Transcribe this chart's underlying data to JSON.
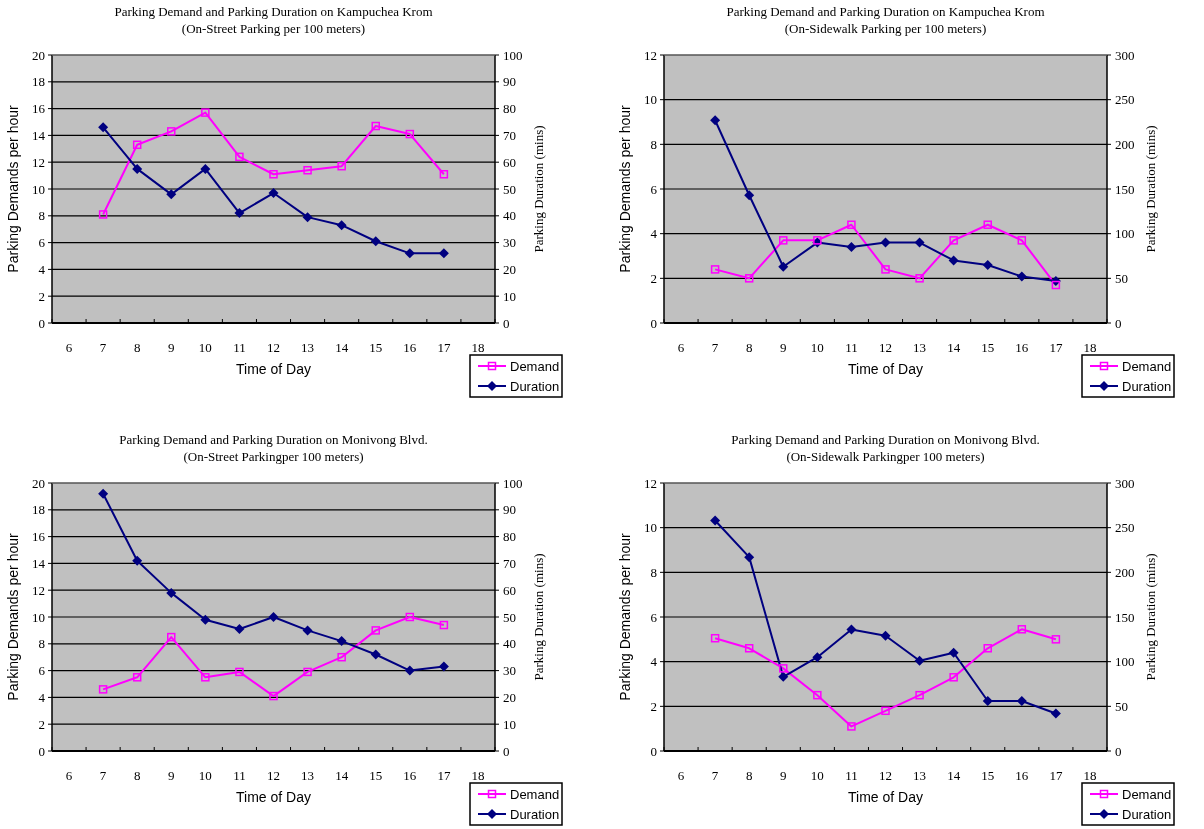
{
  "chart_data": [
    {
      "type": "line",
      "title": "Parking Demand and Parking Duration on Kampuchea Krom",
      "subtitle": "(On-Street Parking per 100 meters)",
      "xlabel": "Time of Day",
      "ylabel": "Parking Demands per hour",
      "y2label": "Parking Duration (mins)",
      "categories": [
        "6",
        "7",
        "8",
        "9",
        "10",
        "11",
        "12",
        "13",
        "14",
        "15",
        "16",
        "17",
        "18"
      ],
      "series": [
        {
          "name": "Demand",
          "color": "#ff00ff",
          "marker": "square",
          "values": [
            null,
            8.1,
            13.3,
            14.3,
            15.7,
            12.4,
            11.1,
            11.4,
            11.7,
            14.7,
            14.1,
            11.1,
            null
          ]
        },
        {
          "name": "Duration",
          "color": "#000080",
          "marker": "diamond",
          "axis": "y2",
          "values": [
            null,
            73,
            57.5,
            48,
            57.5,
            41,
            48.5,
            39.5,
            36.5,
            30.5,
            26,
            26,
            null
          ]
        }
      ],
      "ylim": [
        0,
        20
      ],
      "yticks": [
        0,
        2,
        4,
        6,
        8,
        10,
        12,
        14,
        16,
        18,
        20
      ],
      "y2lim": [
        0,
        100
      ],
      "y2ticks": [
        0,
        10,
        20,
        30,
        40,
        50,
        60,
        70,
        80,
        90,
        100
      ],
      "grid": "y",
      "legend": "bottom right"
    },
    {
      "type": "line",
      "title": "Parking Demand and Parking Duration on Kampuchea Krom",
      "subtitle": "(On-Sidewalk Parking per 100 meters)",
      "xlabel": "Time of Day",
      "ylabel": "Parking Demands per hour",
      "y2label": "Parking Duration (mins)",
      "categories": [
        "6",
        "7",
        "8",
        "9",
        "10",
        "11",
        "12",
        "13",
        "14",
        "15",
        "16",
        "17",
        "18"
      ],
      "series": [
        {
          "name": "Demand",
          "color": "#ff00ff",
          "marker": "square",
          "values": [
            null,
            2.4,
            2.0,
            3.7,
            3.7,
            4.4,
            2.4,
            2.0,
            3.7,
            4.4,
            3.7,
            1.7,
            null
          ]
        },
        {
          "name": "Duration",
          "color": "#000080",
          "marker": "diamond",
          "axis": "y2",
          "values": [
            null,
            227,
            143,
            63,
            90,
            85,
            90,
            90,
            70,
            65,
            52,
            47,
            null
          ]
        }
      ],
      "ylim": [
        0,
        12
      ],
      "yticks": [
        0,
        2,
        4,
        6,
        8,
        10,
        12
      ],
      "y2lim": [
        0,
        300
      ],
      "y2ticks": [
        0,
        50,
        100,
        150,
        200,
        250,
        300
      ],
      "grid": "y",
      "legend": "bottom right"
    },
    {
      "type": "line",
      "title": "Parking Demand and Parking Duration on Monivong Blvd.",
      "subtitle": "(On-Street Parkingper 100 meters)",
      "xlabel": "Time of Day",
      "ylabel": "Parking Demands per hour",
      "y2label": "Parking Duration (mins)",
      "categories": [
        "6",
        "7",
        "8",
        "9",
        "10",
        "11",
        "12",
        "13",
        "14",
        "15",
        "16",
        "17",
        "18"
      ],
      "series": [
        {
          "name": "Demand",
          "color": "#ff00ff",
          "marker": "square",
          "values": [
            null,
            4.6,
            5.5,
            8.5,
            5.5,
            5.9,
            4.1,
            5.9,
            7.0,
            9.0,
            10.0,
            9.4,
            null
          ]
        },
        {
          "name": "Duration",
          "color": "#000080",
          "marker": "diamond",
          "axis": "y2",
          "values": [
            null,
            96,
            71,
            59,
            49,
            45.5,
            50,
            45,
            41,
            36,
            30,
            31.5,
            null
          ]
        }
      ],
      "ylim": [
        0,
        20
      ],
      "yticks": [
        0,
        2,
        4,
        6,
        8,
        10,
        12,
        14,
        16,
        18,
        20
      ],
      "y2lim": [
        0,
        100
      ],
      "y2ticks": [
        0,
        10,
        20,
        30,
        40,
        50,
        60,
        70,
        80,
        90,
        100
      ],
      "grid": "y",
      "legend": "bottom right"
    },
    {
      "type": "line",
      "title": "Parking Demand and Parking Duration on Monivong Blvd.",
      "subtitle": "(On-Sidewalk Parkingper 100 meters)",
      "xlabel": "Time of Day",
      "ylabel": "Parking Demands per hour",
      "y2label": "Parking Duration (mins)",
      "categories": [
        "6",
        "7",
        "8",
        "9",
        "10",
        "11",
        "12",
        "13",
        "14",
        "15",
        "16",
        "17",
        "18"
      ],
      "series": [
        {
          "name": "Demand",
          "color": "#ff00ff",
          "marker": "square",
          "values": [
            null,
            5.05,
            4.6,
            3.7,
            2.5,
            1.1,
            1.8,
            2.5,
            3.3,
            4.6,
            5.45,
            5.0,
            null
          ]
        },
        {
          "name": "Duration",
          "color": "#000080",
          "marker": "diamond",
          "axis": "y2",
          "values": [
            null,
            258,
            217,
            83,
            105,
            136,
            129,
            101,
            110,
            56,
            56,
            42,
            null
          ]
        }
      ],
      "ylim": [
        0,
        12
      ],
      "yticks": [
        0,
        2,
        4,
        6,
        8,
        10,
        12
      ],
      "y2lim": [
        0,
        300
      ],
      "y2ticks": [
        0,
        50,
        100,
        150,
        200,
        250,
        300
      ],
      "grid": "y",
      "legend": "bottom right"
    }
  ]
}
